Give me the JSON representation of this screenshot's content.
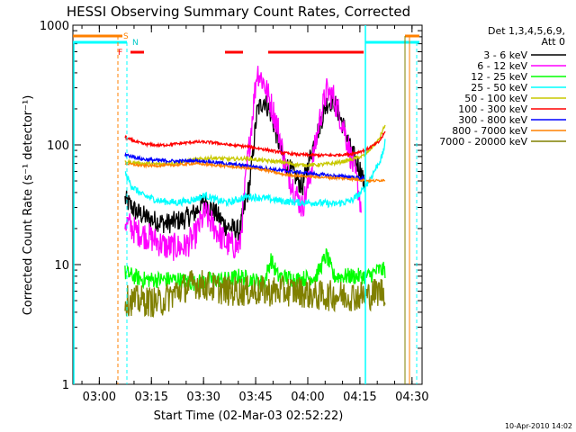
{
  "chart_data": {
    "type": "line",
    "title": "HESSI Observing Summary Count Rates, Corrected",
    "xlabel": "Start Time (02-Mar-03 02:52:22)",
    "ylabel": "Corrected Count Rate (s⁻¹ detector⁻¹)",
    "y_scale": "log",
    "ylim": [
      1,
      1000
    ],
    "xlim_minutes": [
      0,
      100.5
    ],
    "x_ticks": [
      {
        "label": "03:00",
        "minute": 7.6
      },
      {
        "label": "03:15",
        "minute": 22.6
      },
      {
        "label": "03:30",
        "minute": 37.6
      },
      {
        "label": "03:45",
        "minute": 52.6
      },
      {
        "label": "04:00",
        "minute": 67.6
      },
      {
        "label": "04:15",
        "minute": 82.6
      },
      {
        "label": "04:30",
        "minute": 97.6
      }
    ],
    "y_ticks": [
      {
        "label": "1",
        "value": 1
      },
      {
        "label": "10",
        "value": 10
      },
      {
        "label": "100",
        "value": 100
      },
      {
        "label": "1000",
        "value": 1000
      }
    ],
    "legend_title": [
      "Det 1,3,4,5,6,9,",
      "Att 0"
    ],
    "flags": {
      "S": "S",
      "N": "N",
      "F": "F"
    },
    "footer": "10-Apr-2010 14:02",
    "series": [
      {
        "name": "3 - 6 keV",
        "color": "#000000",
        "noise": 0.09,
        "points": [
          [
            15,
            35
          ],
          [
            18,
            28
          ],
          [
            22,
            24
          ],
          [
            27,
            22
          ],
          [
            32,
            24
          ],
          [
            35,
            27
          ],
          [
            38,
            34
          ],
          [
            41,
            27
          ],
          [
            44,
            21
          ],
          [
            48,
            19
          ],
          [
            51,
            50
          ],
          [
            53,
            190
          ],
          [
            55,
            240
          ],
          [
            57,
            180
          ],
          [
            59,
            110
          ],
          [
            61,
            70
          ],
          [
            64,
            55
          ],
          [
            66,
            44
          ],
          [
            69,
            95
          ],
          [
            73,
            220
          ],
          [
            75,
            240
          ],
          [
            78,
            140
          ],
          [
            80,
            90
          ],
          [
            83,
            60
          ],
          [
            84,
            42
          ]
        ]
      },
      {
        "name": "6 - 12 keV",
        "color": "#ff00ff",
        "noise": 0.12,
        "points": [
          [
            15,
            23
          ],
          [
            18,
            19
          ],
          [
            22,
            17
          ],
          [
            27,
            14
          ],
          [
            32,
            14
          ],
          [
            35,
            17
          ],
          [
            38,
            27
          ],
          [
            41,
            20
          ],
          [
            44,
            15
          ],
          [
            48,
            14
          ],
          [
            50,
            60
          ],
          [
            53,
            420
          ],
          [
            55,
            330
          ],
          [
            57,
            220
          ],
          [
            59,
            140
          ],
          [
            61,
            70
          ],
          [
            64,
            40
          ],
          [
            66,
            30
          ],
          [
            68,
            50
          ],
          [
            71,
            160
          ],
          [
            73,
            280
          ],
          [
            75,
            250
          ],
          [
            78,
            140
          ],
          [
            80,
            80
          ],
          [
            82,
            45
          ],
          [
            83,
            30
          ]
        ]
      },
      {
        "name": "12 - 25 keV",
        "color": "#00ff00",
        "noise": 0.07,
        "points": [
          [
            15,
            8.5
          ],
          [
            20,
            7.5
          ],
          [
            30,
            7.5
          ],
          [
            35,
            7
          ],
          [
            40,
            7.5
          ],
          [
            45,
            7.5
          ],
          [
            48,
            8
          ],
          [
            51,
            7.5
          ],
          [
            55,
            7
          ],
          [
            57,
            11
          ],
          [
            59,
            8
          ],
          [
            65,
            7.5
          ],
          [
            70,
            8
          ],
          [
            73,
            12
          ],
          [
            75,
            8
          ],
          [
            80,
            8
          ],
          [
            85,
            8
          ],
          [
            88,
            9
          ],
          [
            90,
            9
          ]
        ]
      },
      {
        "name": "25 - 50 keV",
        "color": "#00ffff",
        "noise": 0.03,
        "points": [
          [
            15,
            58
          ],
          [
            17,
            45
          ],
          [
            20,
            38
          ],
          [
            25,
            34
          ],
          [
            30,
            33
          ],
          [
            35,
            35
          ],
          [
            38,
            38
          ],
          [
            42,
            34
          ],
          [
            45,
            33
          ],
          [
            50,
            37
          ],
          [
            55,
            36
          ],
          [
            60,
            34
          ],
          [
            65,
            33
          ],
          [
            70,
            33
          ],
          [
            75,
            32
          ],
          [
            80,
            34
          ],
          [
            83,
            40
          ],
          [
            86,
            55
          ],
          [
            89,
            80
          ],
          [
            90,
            110
          ]
        ]
      },
      {
        "name": "50 - 100 keV",
        "color": "#c8c800",
        "noise": 0.015,
        "points": [
          [
            15,
            72
          ],
          [
            20,
            70
          ],
          [
            25,
            69
          ],
          [
            30,
            71
          ],
          [
            35,
            75
          ],
          [
            40,
            78
          ],
          [
            45,
            76
          ],
          [
            50,
            77
          ],
          [
            55,
            74
          ],
          [
            60,
            72
          ],
          [
            65,
            68
          ],
          [
            70,
            68
          ],
          [
            75,
            70
          ],
          [
            80,
            75
          ],
          [
            84,
            82
          ],
          [
            88,
            110
          ],
          [
            90,
            150
          ]
        ]
      },
      {
        "name": "100 - 300 keV",
        "color": "#ff0000",
        "noise": 0.012,
        "points": [
          [
            15,
            115
          ],
          [
            20,
            102
          ],
          [
            25,
            99
          ],
          [
            30,
            102
          ],
          [
            35,
            106
          ],
          [
            40,
            105
          ],
          [
            45,
            100
          ],
          [
            50,
            97
          ],
          [
            55,
            92
          ],
          [
            60,
            86
          ],
          [
            65,
            83
          ],
          [
            70,
            82
          ],
          [
            75,
            82
          ],
          [
            80,
            84
          ],
          [
            84,
            90
          ],
          [
            88,
            105
          ],
          [
            90,
            130
          ]
        ]
      },
      {
        "name": "300 - 800 keV",
        "color": "#0000ff",
        "noise": 0.015,
        "points": [
          [
            15,
            83
          ],
          [
            20,
            76
          ],
          [
            25,
            74
          ],
          [
            30,
            73
          ],
          [
            35,
            74
          ],
          [
            40,
            72
          ],
          [
            45,
            69
          ],
          [
            50,
            67
          ],
          [
            55,
            64
          ],
          [
            60,
            61
          ],
          [
            65,
            59
          ],
          [
            70,
            57
          ],
          [
            75,
            55
          ],
          [
            80,
            54
          ],
          [
            84,
            52
          ]
        ]
      },
      {
        "name": "800 - 7000 keV",
        "color": "#ff8000",
        "noise": 0.01,
        "points": [
          [
            15,
            70
          ],
          [
            20,
            67
          ],
          [
            25,
            67
          ],
          [
            30,
            68
          ],
          [
            35,
            70
          ],
          [
            40,
            68
          ],
          [
            45,
            66
          ],
          [
            50,
            64
          ],
          [
            55,
            62
          ],
          [
            60,
            57
          ],
          [
            65,
            55
          ],
          [
            70,
            54
          ],
          [
            75,
            53
          ],
          [
            80,
            52
          ],
          [
            86,
            50
          ],
          [
            90,
            51
          ]
        ]
      },
      {
        "name": "7000 - 20000 keV",
        "color": "#808000",
        "noise": 0.13,
        "points": [
          [
            15,
            5
          ],
          [
            20,
            5
          ],
          [
            25,
            4.8
          ],
          [
            30,
            6
          ],
          [
            35,
            7
          ],
          [
            40,
            6.5
          ],
          [
            45,
            6
          ],
          [
            50,
            6
          ],
          [
            55,
            6
          ],
          [
            60,
            6
          ],
          [
            65,
            6
          ],
          [
            70,
            5.5
          ],
          [
            75,
            5.5
          ],
          [
            80,
            5.5
          ],
          [
            85,
            5.5
          ],
          [
            88,
            6
          ],
          [
            90,
            6
          ]
        ]
      }
    ]
  }
}
